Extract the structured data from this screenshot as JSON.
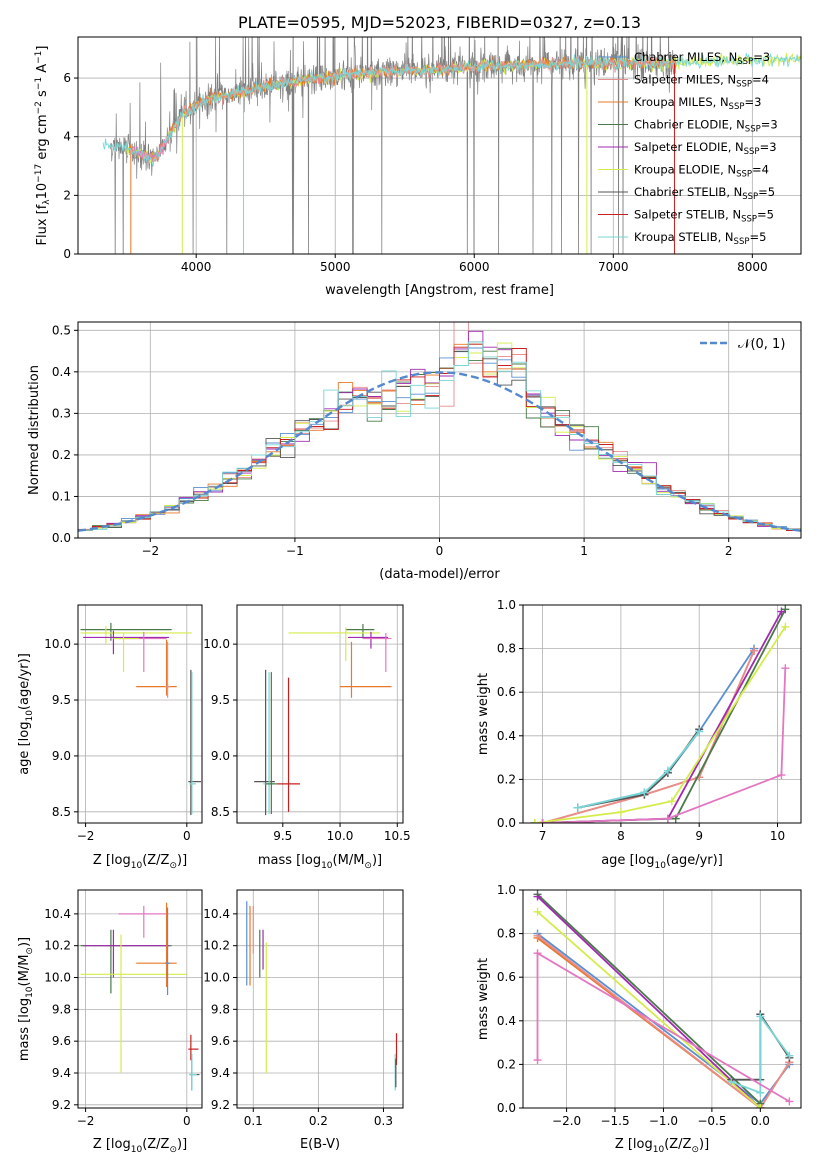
{
  "colors": {
    "chabrier_miles": "#5a8fd0",
    "salpeter_miles": "#e88c8c",
    "kroupa_miles": "#e8782a",
    "chabrier_elodie": "#4a7a4a",
    "salpeter_elodie": "#a02ab0",
    "kroupa_elodie": "#d4ec4a",
    "chabrier_stelib": "#555555",
    "salpeter_stelib": "#c81e1e",
    "kroupa_stelib": "#7ad6d6",
    "obs": "#808080",
    "normal": "#5588cc",
    "pink": "#e377c2"
  },
  "chart_data": [
    {
      "id": "spectrum",
      "type": "line",
      "title": "PLATE=0595, MJD=52023, FIBERID=0327, z=0.13",
      "xlabel": "wavelength [Angstrom, rest frame]",
      "ylabel": "Flux [f",
      "ylabel_parts": [
        "λ",
        "10",
        "−17",
        " erg cm",
        "−2",
        " s",
        "−1",
        " A",
        "−1",
        "]"
      ],
      "xlim": [
        3150,
        8350
      ],
      "ylim": [
        0,
        7.4
      ],
      "xticks": [
        "4000",
        "5000",
        "6000",
        "7000",
        "8000"
      ],
      "yticks": [
        "0",
        "2",
        "4",
        "6"
      ],
      "legend_placement": "upper-right",
      "legend": [
        {
          "pre": "Chabrier MILES, N",
          "sub": "SSP",
          "post": "=3"
        },
        {
          "pre": "Salpeter MILES, N",
          "sub": "SSP",
          "post": "=4"
        },
        {
          "pre": "Kroupa MILES, N",
          "sub": "SSP",
          "post": "=3"
        },
        {
          "pre": "Chabrier ELODIE, N",
          "sub": "SSP",
          "post": "=3"
        },
        {
          "pre": "Salpeter ELODIE, N",
          "sub": "SSP",
          "post": "=3"
        },
        {
          "pre": "Kroupa ELODIE, N",
          "sub": "SSP",
          "post": "=4"
        },
        {
          "pre": "Chabrier STELIB, N",
          "sub": "SSP",
          "post": "=5"
        },
        {
          "pre": "Salpeter STELIB, N",
          "sub": "SSP",
          "post": "=5"
        },
        {
          "pre": "Kroupa STELIB, N",
          "sub": "SSP",
          "post": "=5"
        }
      ],
      "continuum_x": [
        3350,
        3500,
        3700,
        3900,
        4100,
        4300,
        4500,
        4700,
        4900,
        5100,
        5300,
        5500,
        5800,
        6100,
        6400,
        6700,
        7000,
        7300,
        7600,
        7900,
        8300
      ],
      "continuum_y": [
        3.7,
        3.6,
        3.2,
        4.8,
        5.3,
        5.5,
        5.7,
        5.9,
        6.0,
        6.1,
        6.2,
        6.25,
        6.3,
        6.4,
        6.45,
        6.5,
        6.5,
        6.5,
        6.55,
        6.6,
        6.65
      ]
    },
    {
      "id": "residuals",
      "type": "histogram",
      "xlabel": "(data-model)/error",
      "ylabel": "Normed distribution",
      "xlim": [
        -2.5,
        2.5
      ],
      "ylim": [
        0,
        0.52
      ],
      "xticks": [
        "−2",
        "−1",
        "0",
        "1",
        "2"
      ],
      "yticks": [
        "0.0",
        "0.1",
        "0.2",
        "0.3",
        "0.4",
        "0.5"
      ],
      "legend_placement": "upper-right",
      "legend_label": "𝒩(0, 1)",
      "bin_width": 0.1,
      "normal_mean": 0,
      "normal_sigma": 1
    },
    {
      "id": "age-z",
      "type": "errorbar",
      "xlabel": "Z [log",
      "xlabel_sub": "10",
      "xlabel_rest": "(Z/Z",
      "xlabel_sub2": "⊙",
      "xlabel_end": ")]",
      "ylabel": "age  [log",
      "ylabel_sub": "10",
      "ylabel_rest": "(age/yr)]",
      "xlim": [
        -2.15,
        0.3
      ],
      "ylim": [
        8.4,
        10.35
      ],
      "xticks": [
        "−2",
        "0"
      ],
      "yticks": [
        "8.5",
        "9.0",
        "9.5",
        "10.0"
      ],
      "points": [
        {
          "x": -1.5,
          "y": 10.13,
          "xl": 0.6,
          "xr": 1.2,
          "yl": 0.1,
          "yh": 0.06,
          "c": "chabrier_elodie"
        },
        {
          "x": -1.6,
          "y": 10.1,
          "xl": 0.5,
          "xr": 1.7,
          "yl": 0.1,
          "yh": 0.06,
          "c": "kroupa_elodie"
        },
        {
          "x": -1.45,
          "y": 10.06,
          "xl": 0.6,
          "xr": 1.1,
          "yl": 0.15,
          "yh": 0.06,
          "c": "salpeter_elodie"
        },
        {
          "x": -0.85,
          "y": 10.05,
          "xl": 0.5,
          "xr": 0.45,
          "yl": 0.3,
          "yh": 0.06,
          "c": "pink"
        },
        {
          "x": -1.25,
          "y": 10.05,
          "xl": 0.2,
          "xr": 0.3,
          "yl": 0.3,
          "yh": 0.05,
          "c": "kroupa_elodie"
        },
        {
          "x": -0.4,
          "y": 9.62,
          "xl": 0.6,
          "xr": 0.2,
          "yl": 0.08,
          "yh": 0.42,
          "c": "kroupa_miles"
        },
        {
          "x": -0.38,
          "y": 9.62,
          "xl": 0.05,
          "xr": 0.05,
          "yl": 0.1,
          "yh": 0.4,
          "c": "salpeter_miles"
        },
        {
          "x": 0.08,
          "y": 8.77,
          "xl": 0.05,
          "xr": 0.2,
          "yl": 0.3,
          "yh": 1.0,
          "c": "chabrier_stelib"
        },
        {
          "x": 0.1,
          "y": 8.75,
          "xl": 0.05,
          "xr": 0.08,
          "yl": 0.27,
          "yh": 1.0,
          "c": "kroupa_stelib"
        }
      ]
    },
    {
      "id": "age-mass",
      "type": "errorbar",
      "xlabel": "mass [log",
      "xlabel_sub": "10",
      "xlabel_rest": "(M/M",
      "xlabel_sub2": "⊙",
      "xlabel_end": ")]",
      "xlim": [
        9.1,
        10.55
      ],
      "ylim": [
        8.4,
        10.35
      ],
      "xticks": [
        "9.5",
        "10.0",
        "10.5"
      ],
      "yticks": [
        "8.5",
        "9.0",
        "9.5",
        "10.0"
      ],
      "points": [
        {
          "x": 10.2,
          "y": 10.13,
          "xl": 0.15,
          "xr": 0.1,
          "yl": 0.08,
          "yh": 0.05,
          "c": "chabrier_elodie"
        },
        {
          "x": 10.05,
          "y": 10.1,
          "xl": 0.5,
          "xr": 0.3,
          "yl": 0.25,
          "yh": 0.05,
          "c": "kroupa_elodie"
        },
        {
          "x": 10.27,
          "y": 10.06,
          "xl": 0.2,
          "xr": 0.15,
          "yl": 0.1,
          "yh": 0.05,
          "c": "salpeter_elodie"
        },
        {
          "x": 10.4,
          "y": 10.05,
          "xl": 0.2,
          "xr": 0.05,
          "yl": 0.3,
          "yh": 0.05,
          "c": "pink"
        },
        {
          "x": 10.1,
          "y": 9.62,
          "xl": 0.1,
          "xr": 0.35,
          "yl": 0.1,
          "yh": 0.4,
          "c": "kroupa_miles"
        },
        {
          "x": 9.55,
          "y": 8.75,
          "xl": 0.1,
          "xr": 0.1,
          "yl": 0.25,
          "yh": 0.95,
          "c": "salpeter_stelib"
        },
        {
          "x": 9.35,
          "y": 8.77,
          "xl": 0.1,
          "xr": 0.08,
          "yl": 0.3,
          "yh": 1.0,
          "c": "chabrier_stelib"
        },
        {
          "x": 9.38,
          "y": 8.75,
          "xl": 0.05,
          "xr": 0.05,
          "yl": 0.27,
          "yh": 1.0,
          "c": "kroupa_stelib"
        },
        {
          "x": 9.4,
          "y": 8.75,
          "xl": 0.05,
          "xr": 0.05,
          "yl": 0.27,
          "yh": 1.0,
          "c": "chabrier_elodie"
        }
      ]
    },
    {
      "id": "mw-age",
      "type": "line",
      "xlabel": "age  [log",
      "xlabel_sub": "10",
      "xlabel_rest": "(age/yr)]",
      "ylabel": "mass weight",
      "xlim": [
        6.75,
        10.3
      ],
      "ylim": [
        0,
        1.0
      ],
      "xticks": [
        "7",
        "8",
        "9",
        "10"
      ],
      "yticks": [
        "0.0",
        "0.2",
        "0.4",
        "0.6",
        "0.8",
        "1.0"
      ],
      "series": [
        {
          "c": "chabrier_miles",
          "x": [
            7.45,
            8.3,
            8.6,
            9.0,
            9.7
          ],
          "y": [
            0.07,
            0.14,
            0.23,
            0.42,
            0.8
          ]
        },
        {
          "c": "kroupa_miles",
          "x": [
            7.0,
            8.3,
            9.0,
            9.7
          ],
          "y": [
            0.0,
            0.13,
            0.21,
            0.79
          ]
        },
        {
          "c": "salpeter_miles",
          "x": [
            7.0,
            8.3,
            9.0,
            9.7
          ],
          "y": [
            0.0,
            0.13,
            0.21,
            0.79
          ]
        },
        {
          "c": "chabrier_elodie",
          "x": [
            6.9,
            8.7,
            10.1
          ],
          "y": [
            0.0,
            0.02,
            0.98
          ]
        },
        {
          "c": "salpeter_elodie",
          "x": [
            7.0,
            8.6,
            10.05
          ],
          "y": [
            0.0,
            0.02,
            0.97
          ]
        },
        {
          "c": "kroupa_elodie",
          "x": [
            6.9,
            8.0,
            8.65,
            10.1
          ],
          "y": [
            0.0,
            0.05,
            0.1,
            0.9
          ]
        },
        {
          "c": "chabrier_stelib",
          "x": [
            7.45,
            8.3,
            8.6,
            9.0
          ],
          "y": [
            0.07,
            0.13,
            0.23,
            0.43
          ]
        },
        {
          "c": "kroupa_stelib",
          "x": [
            7.45,
            8.3,
            8.6,
            9.0
          ],
          "y": [
            0.07,
            0.14,
            0.24,
            0.42
          ]
        },
        {
          "c": "pink",
          "x": [
            7.0,
            8.6,
            10.05,
            10.1
          ],
          "y": [
            0.0,
            0.02,
            0.22,
            0.71
          ]
        }
      ]
    },
    {
      "id": "mass-z",
      "type": "errorbar",
      "xlabel": "Z [log",
      "xlabel_sub": "10",
      "xlabel_rest": "(Z/Z",
      "xlabel_sub2": "⊙",
      "xlabel_end": ")]",
      "ylabel": "mass [log",
      "ylabel_sub": "10",
      "ylabel_rest": "(M/M",
      "ylabel_sub2": "⊙",
      "ylabel_end": ")]",
      "xlim": [
        -2.15,
        0.3
      ],
      "ylim": [
        9.18,
        10.55
      ],
      "xticks": [
        "−2",
        "0"
      ],
      "yticks": [
        "9.2",
        "9.4",
        "9.6",
        "9.8",
        "10.0",
        "10.2",
        "10.4"
      ],
      "points": [
        {
          "x": -1.5,
          "y": 10.2,
          "xl": 0.6,
          "xr": 1.2,
          "yl": 0.3,
          "yh": 0.1,
          "c": "chabrier_elodie"
        },
        {
          "x": -1.45,
          "y": 10.2,
          "xl": 0.6,
          "xr": 1.1,
          "yl": 0.2,
          "yh": 0.1,
          "c": "salpeter_elodie"
        },
        {
          "x": -1.3,
          "y": 10.02,
          "xl": 0.8,
          "xr": 1.3,
          "yl": 0.62,
          "yh": 0.25,
          "c": "kroupa_elodie"
        },
        {
          "x": -0.85,
          "y": 10.4,
          "xl": 0.5,
          "xr": 0.45,
          "yl": 0.15,
          "yh": 0.05,
          "c": "pink"
        },
        {
          "x": -0.4,
          "y": 10.09,
          "xl": 0.6,
          "xr": 0.2,
          "yl": 0.15,
          "yh": 0.38,
          "c": "kroupa_miles"
        },
        {
          "x": -0.38,
          "y": 10.09,
          "xl": 0.05,
          "xr": 0.05,
          "yl": 0.2,
          "yh": 0.35,
          "c": "chabrier_miles"
        },
        {
          "x": 0.08,
          "y": 9.55,
          "xl": 0.05,
          "xr": 0.15,
          "yl": 0.07,
          "yh": 0.09,
          "c": "salpeter_stelib"
        },
        {
          "x": 0.1,
          "y": 9.39,
          "xl": 0.05,
          "xr": 0.15,
          "yl": 0.1,
          "yh": 0.1,
          "c": "chabrier_stelib"
        },
        {
          "x": 0.1,
          "y": 9.39,
          "xl": 0.05,
          "xr": 0.1,
          "yl": 0.1,
          "yh": 0.13,
          "c": "kroupa_stelib"
        }
      ]
    },
    {
      "id": "mass-ebv",
      "type": "errorbar",
      "xlabel": "E(B-V)",
      "xlim": [
        0.075,
        0.33
      ],
      "ylim": [
        9.18,
        10.55
      ],
      "xticks": [
        "0.1",
        "0.2",
        "0.3"
      ],
      "yticks": [
        "9.2",
        "9.4",
        "9.6",
        "9.8",
        "10.0",
        "10.2",
        "10.4"
      ],
      "points": [
        {
          "x": 0.09,
          "y": 10.2,
          "xl": 0.0,
          "xr": 0.0,
          "yl": 0.25,
          "yh": 0.28,
          "c": "chabrier_miles"
        },
        {
          "x": 0.095,
          "y": 10.2,
          "xl": 0.0,
          "xr": 0.0,
          "yl": 0.25,
          "yh": 0.25,
          "c": "kroupa_miles"
        },
        {
          "x": 0.1,
          "y": 10.3,
          "xl": 0.0,
          "xr": 0.0,
          "yl": 0.15,
          "yh": 0.15,
          "c": "salpeter_miles"
        },
        {
          "x": 0.11,
          "y": 10.2,
          "xl": 0.0,
          "xr": 0.0,
          "yl": 0.2,
          "yh": 0.1,
          "c": "chabrier_elodie"
        },
        {
          "x": 0.115,
          "y": 10.2,
          "xl": 0.0,
          "xr": 0.0,
          "yl": 0.15,
          "yh": 0.1,
          "c": "salpeter_elodie"
        },
        {
          "x": 0.12,
          "y": 10.02,
          "xl": 0.0,
          "xr": 0.0,
          "yl": 0.62,
          "yh": 0.2,
          "c": "kroupa_elodie"
        },
        {
          "x": 0.32,
          "y": 9.55,
          "xl": 0.0,
          "xr": 0.0,
          "yl": 0.1,
          "yh": 0.1,
          "c": "salpeter_stelib"
        },
        {
          "x": 0.318,
          "y": 9.39,
          "xl": 0.0,
          "xr": 0.0,
          "yl": 0.1,
          "yh": 0.13,
          "c": "kroupa_stelib"
        },
        {
          "x": 0.319,
          "y": 9.39,
          "xl": 0.0,
          "xr": 0.0,
          "yl": 0.08,
          "yh": 0.1,
          "c": "chabrier_stelib"
        }
      ]
    },
    {
      "id": "mw-z",
      "type": "line",
      "xlabel": "Z [log",
      "xlabel_sub": "10",
      "xlabel_rest": "(Z/Z",
      "xlabel_sub2": "⊙",
      "xlabel_end": ")]",
      "ylabel": "mass weight",
      "xlim": [
        -2.45,
        0.42
      ],
      "ylim": [
        0,
        1.0
      ],
      "xticks": [
        "−2.0",
        "−1.5",
        "−1.0",
        "−0.5",
        "0.0"
      ],
      "yticks": [
        "0.0",
        "0.2",
        "0.4",
        "0.6",
        "0.8",
        "1.0"
      ],
      "series": [
        {
          "c": "chabrier_miles",
          "x": [
            -2.3,
            0.0,
            0.3
          ],
          "y": [
            0.8,
            0.02,
            0.2
          ]
        },
        {
          "c": "kroupa_miles",
          "x": [
            -2.3,
            0.0,
            0.3
          ],
          "y": [
            0.78,
            0.0,
            0.21
          ]
        },
        {
          "c": "salpeter_miles",
          "x": [
            -2.3,
            0.0,
            0.3
          ],
          "y": [
            0.79,
            0.0,
            0.21
          ]
        },
        {
          "c": "chabrier_elodie",
          "x": [
            -2.3,
            0.0
          ],
          "y": [
            0.98,
            0.02
          ]
        },
        {
          "c": "salpeter_elodie",
          "x": [
            -2.3,
            0.0
          ],
          "y": [
            0.97,
            0.0
          ]
        },
        {
          "c": "kroupa_elodie",
          "x": [
            -2.3,
            0.0
          ],
          "y": [
            0.9,
            0.0
          ]
        },
        {
          "c": "chabrier_stelib",
          "x": [
            -0.3,
            0.0,
            0.0,
            0.3
          ],
          "y": [
            0.13,
            0.13,
            0.43,
            0.23
          ]
        },
        {
          "c": "kroupa_stelib",
          "x": [
            -0.3,
            0.0,
            0.0,
            0.3
          ],
          "y": [
            0.12,
            0.07,
            0.42,
            0.24
          ]
        },
        {
          "c": "pink",
          "x": [
            -2.3,
            -2.3,
            0.3
          ],
          "y": [
            0.22,
            0.71,
            0.03
          ]
        }
      ]
    }
  ]
}
